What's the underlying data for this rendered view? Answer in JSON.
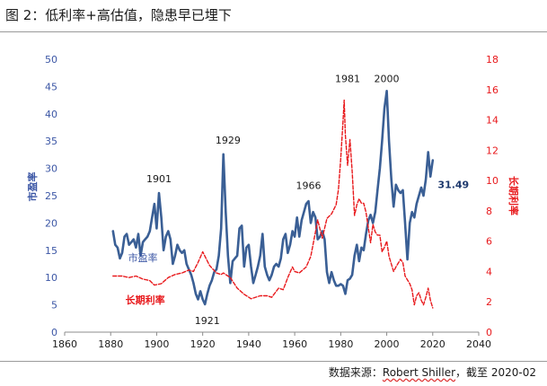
{
  "title": "图 2：低利率+高估值，隐患早已埋下",
  "source": {
    "prefix": "数据来源：",
    "author": "Robert Shiller",
    "suffix": "，截至 2020-02"
  },
  "colors": {
    "pe": "#3a5f95",
    "rate": "#e8191c",
    "left_axis": "#3b56a5",
    "right_axis": "#e8191c"
  },
  "chart_data": {
    "type": "line",
    "x_ticks": [
      1860,
      1880,
      1900,
      1920,
      1940,
      1960,
      1980,
      2000,
      2020,
      2040
    ],
    "xlim": [
      1860,
      2040
    ],
    "ylim_left": [
      0,
      50
    ],
    "y_ticks_left": [
      0,
      5,
      10,
      15,
      20,
      25,
      30,
      35,
      40,
      45,
      50
    ],
    "ylim_right": [
      0,
      18
    ],
    "y_ticks_right": [
      0,
      2,
      4,
      6,
      8,
      10,
      12,
      14,
      16,
      18
    ],
    "ylabel_left": "市盈率",
    "ylabel_right": "长期利率",
    "series": [
      {
        "name": "市盈率",
        "axis": "left",
        "style": "solid",
        "points": [
          [
            1881,
            18.5
          ],
          [
            1882,
            16
          ],
          [
            1883,
            15.5
          ],
          [
            1884,
            13.5
          ],
          [
            1885,
            14.5
          ],
          [
            1886,
            17.5
          ],
          [
            1887,
            18
          ],
          [
            1888,
            16
          ],
          [
            1889,
            16.5
          ],
          [
            1890,
            17
          ],
          [
            1891,
            15.5
          ],
          [
            1892,
            18
          ],
          [
            1893,
            14
          ],
          [
            1894,
            16.5
          ],
          [
            1895,
            17
          ],
          [
            1896,
            17.5
          ],
          [
            1897,
            18.5
          ],
          [
            1898,
            21
          ],
          [
            1899,
            23.5
          ],
          [
            1900,
            19
          ],
          [
            1901,
            25.5
          ],
          [
            1902,
            21
          ],
          [
            1903,
            15
          ],
          [
            1904,
            17.5
          ],
          [
            1905,
            18.5
          ],
          [
            1906,
            17
          ],
          [
            1907,
            12.5
          ],
          [
            1908,
            14
          ],
          [
            1909,
            16
          ],
          [
            1910,
            15
          ],
          [
            1911,
            14.5
          ],
          [
            1912,
            15
          ],
          [
            1913,
            12.5
          ],
          [
            1914,
            11.5
          ],
          [
            1915,
            10.5
          ],
          [
            1916,
            9
          ],
          [
            1917,
            7
          ],
          [
            1918,
            6
          ],
          [
            1919,
            7.5
          ],
          [
            1920,
            6
          ],
          [
            1921,
            5.1
          ],
          [
            1922,
            7
          ],
          [
            1923,
            8.5
          ],
          [
            1924,
            9.5
          ],
          [
            1925,
            11
          ],
          [
            1926,
            11.5
          ],
          [
            1927,
            14
          ],
          [
            1928,
            19
          ],
          [
            1929,
            32.6
          ],
          [
            1930,
            22
          ],
          [
            1931,
            14
          ],
          [
            1932,
            9
          ],
          [
            1933,
            13
          ],
          [
            1934,
            13.5
          ],
          [
            1935,
            14
          ],
          [
            1936,
            19
          ],
          [
            1937,
            19.5
          ],
          [
            1938,
            12
          ],
          [
            1939,
            15.5
          ],
          [
            1940,
            16
          ],
          [
            1941,
            12
          ],
          [
            1942,
            9
          ],
          [
            1943,
            10.5
          ],
          [
            1944,
            12
          ],
          [
            1945,
            14
          ],
          [
            1946,
            18
          ],
          [
            1947,
            12
          ],
          [
            1948,
            10.5
          ],
          [
            1949,
            9.5
          ],
          [
            1950,
            10.5
          ],
          [
            1951,
            12
          ],
          [
            1952,
            12.5
          ],
          [
            1953,
            12
          ],
          [
            1954,
            13.5
          ],
          [
            1955,
            17
          ],
          [
            1956,
            18
          ],
          [
            1957,
            14.5
          ],
          [
            1958,
            16
          ],
          [
            1959,
            18.5
          ],
          [
            1960,
            17.5
          ],
          [
            1961,
            21
          ],
          [
            1962,
            17.5
          ],
          [
            1963,
            20.5
          ],
          [
            1964,
            22
          ],
          [
            1965,
            23.5
          ],
          [
            1966,
            24
          ],
          [
            1967,
            20
          ],
          [
            1968,
            22
          ],
          [
            1969,
            21
          ],
          [
            1970,
            17
          ],
          [
            1971,
            17.5
          ],
          [
            1972,
            18.5
          ],
          [
            1973,
            17
          ],
          [
            1974,
            11
          ],
          [
            1975,
            9
          ],
          [
            1976,
            11
          ],
          [
            1977,
            9.5
          ],
          [
            1978,
            8.5
          ],
          [
            1979,
            8.5
          ],
          [
            1980,
            8.8
          ],
          [
            1981,
            8.5
          ],
          [
            1982,
            7
          ],
          [
            1983,
            9.5
          ],
          [
            1984,
            9.8
          ],
          [
            1985,
            10.5
          ],
          [
            1986,
            14
          ],
          [
            1987,
            16
          ],
          [
            1988,
            13
          ],
          [
            1989,
            15.5
          ],
          [
            1990,
            15
          ],
          [
            1991,
            18
          ],
          [
            1992,
            20.5
          ],
          [
            1993,
            21.5
          ],
          [
            1994,
            20
          ],
          [
            1995,
            22
          ],
          [
            1996,
            26
          ],
          [
            1997,
            30
          ],
          [
            1998,
            35
          ],
          [
            1999,
            41
          ],
          [
            2000,
            44.2
          ],
          [
            2001,
            35
          ],
          [
            2002,
            28
          ],
          [
            2003,
            23
          ],
          [
            2004,
            27
          ],
          [
            2005,
            26
          ],
          [
            2006,
            25.5
          ],
          [
            2007,
            26
          ],
          [
            2008,
            20
          ],
          [
            2009,
            13.3
          ],
          [
            2010,
            20
          ],
          [
            2011,
            22
          ],
          [
            2012,
            21
          ],
          [
            2013,
            23.5
          ],
          [
            2014,
            25
          ],
          [
            2015,
            26.5
          ],
          [
            2016,
            25
          ],
          [
            2017,
            28
          ],
          [
            2018,
            33
          ],
          [
            2019,
            28.5
          ],
          [
            2020,
            31.49
          ]
        ]
      },
      {
        "name": "长期利率",
        "axis": "right",
        "style": "dashed",
        "points": [
          [
            1881,
            3.7
          ],
          [
            1885,
            3.7
          ],
          [
            1888,
            3.6
          ],
          [
            1891,
            3.7
          ],
          [
            1894,
            3.5
          ],
          [
            1897,
            3.4
          ],
          [
            1899,
            3.1
          ],
          [
            1902,
            3.2
          ],
          [
            1905,
            3.6
          ],
          [
            1908,
            3.8
          ],
          [
            1911,
            3.9
          ],
          [
            1914,
            4.1
          ],
          [
            1916,
            4.0
          ],
          [
            1918,
            4.6
          ],
          [
            1920,
            5.3
          ],
          [
            1921,
            5.0
          ],
          [
            1923,
            4.4
          ],
          [
            1926,
            3.9
          ],
          [
            1928,
            3.8
          ],
          [
            1929,
            3.9
          ],
          [
            1931,
            3.7
          ],
          [
            1932,
            3.6
          ],
          [
            1935,
            2.9
          ],
          [
            1938,
            2.5
          ],
          [
            1941,
            2.2
          ],
          [
            1945,
            2.4
          ],
          [
            1948,
            2.4
          ],
          [
            1950,
            2.3
          ],
          [
            1953,
            2.9
          ],
          [
            1955,
            2.8
          ],
          [
            1957,
            3.6
          ],
          [
            1959,
            4.3
          ],
          [
            1960,
            4.0
          ],
          [
            1962,
            3.9
          ],
          [
            1965,
            4.3
          ],
          [
            1967,
            5.0
          ],
          [
            1969,
            6.6
          ],
          [
            1970,
            7.4
          ],
          [
            1972,
            6.2
          ],
          [
            1974,
            7.5
          ],
          [
            1976,
            7.8
          ],
          [
            1978,
            8.4
          ],
          [
            1979,
            9.4
          ],
          [
            1980,
            11.4
          ],
          [
            1981,
            13.9
          ],
          [
            1981.5,
            15.3
          ],
          [
            1982,
            13.0
          ],
          [
            1983,
            11.0
          ],
          [
            1984,
            12.7
          ],
          [
            1985,
            10.6
          ],
          [
            1986,
            7.7
          ],
          [
            1987,
            8.4
          ],
          [
            1988,
            8.8
          ],
          [
            1989,
            8.5
          ],
          [
            1990,
            8.5
          ],
          [
            1991,
            7.9
          ],
          [
            1993,
            5.9
          ],
          [
            1994,
            7.1
          ],
          [
            1995,
            6.6
          ],
          [
            1996,
            6.4
          ],
          [
            1997,
            6.4
          ],
          [
            1998,
            5.3
          ],
          [
            1999,
            5.6
          ],
          [
            2000,
            6.0
          ],
          [
            2001,
            5.0
          ],
          [
            2003,
            4.0
          ],
          [
            2004,
            4.3
          ],
          [
            2006,
            4.8
          ],
          [
            2007,
            4.6
          ],
          [
            2008,
            3.7
          ],
          [
            2010,
            3.2
          ],
          [
            2011,
            2.8
          ],
          [
            2012,
            1.8
          ],
          [
            2013,
            2.4
          ],
          [
            2014,
            2.6
          ],
          [
            2015,
            2.1
          ],
          [
            2016,
            1.8
          ],
          [
            2017,
            2.3
          ],
          [
            2018,
            2.9
          ],
          [
            2019,
            2.1
          ],
          [
            2020,
            1.6
          ]
        ]
      }
    ],
    "annotations": [
      {
        "text": "1901",
        "x": 1901,
        "y": 27.5,
        "axis": "left"
      },
      {
        "text": "1929",
        "x": 1931,
        "y": 34.5,
        "axis": "left"
      },
      {
        "text": "1921",
        "x": 1922,
        "y": 1.5,
        "axis": "left"
      },
      {
        "text": "1966",
        "x": 1966,
        "y": 26.2,
        "axis": "left"
      },
      {
        "text": "1981",
        "x": 1983,
        "y": 45.8,
        "axis": "left"
      },
      {
        "text": "2000",
        "x": 2000,
        "y": 45.8,
        "axis": "left"
      },
      {
        "text": "31.49",
        "x": 2029,
        "y": 26.4,
        "axis": "left",
        "bold": true,
        "color": "#1f3a6e"
      },
      {
        "text": "市盈率",
        "x": 1894,
        "y": 13,
        "axis": "left",
        "color": "#3b56a5"
      },
      {
        "text": "长期利率",
        "x": 1895,
        "y": 5.3,
        "axis": "left",
        "color": "#e8191c",
        "bold": true
      }
    ]
  }
}
